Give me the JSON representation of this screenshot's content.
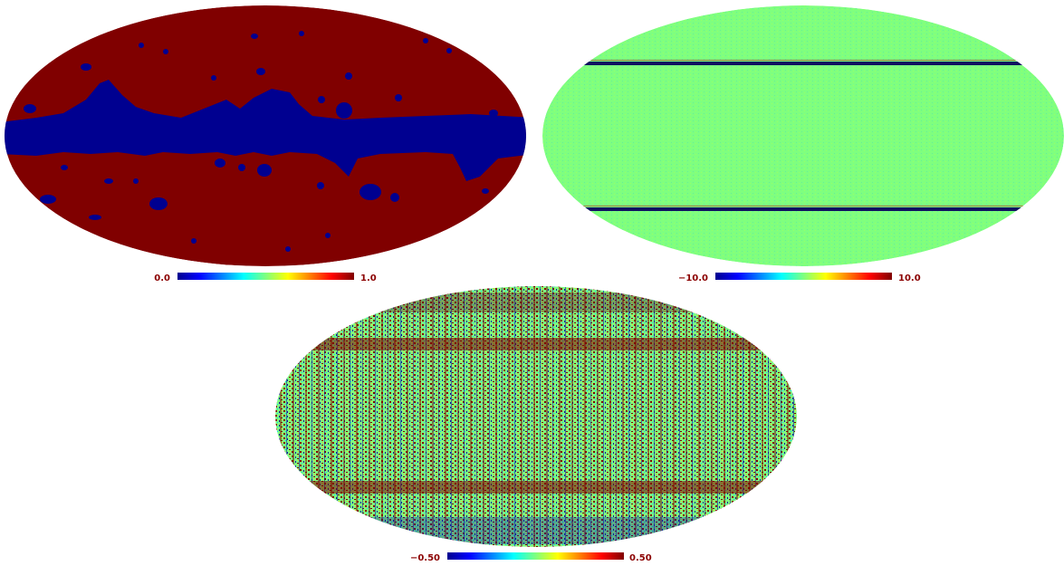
{
  "figure": {
    "panels": [
      {
        "id": "mask",
        "colorbar": {
          "min_label": "0.0",
          "max_label": "1.0",
          "colormap": "jet"
        },
        "description_colors": {
          "background_value_color": "#800000",
          "masked_region_color": "#000090"
        }
      },
      {
        "id": "residual",
        "colorbar": {
          "min_label": "−10.0",
          "max_label": "10.0",
          "colormap": "jet"
        },
        "description_colors": {
          "fill_color": "#7fff7f",
          "stripe_color": "#101060"
        }
      },
      {
        "id": "noise",
        "colorbar": {
          "min_label": "−0.50",
          "max_label": "0.50",
          "colormap": "jet"
        },
        "description_colors": {
          "dominant_a": "#800000",
          "dominant_b": "#7fff7f",
          "dominant_c": "#1010a0"
        }
      }
    ]
  }
}
